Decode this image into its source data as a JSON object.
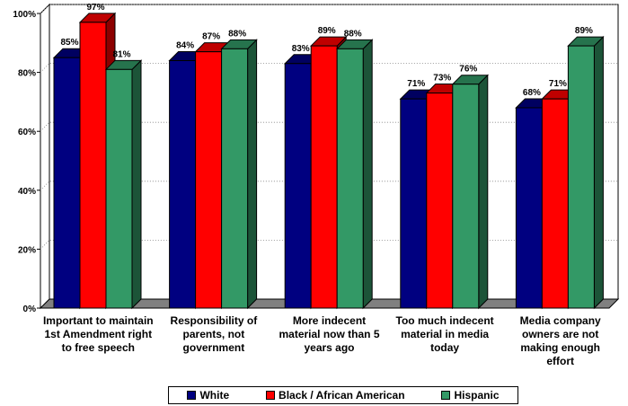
{
  "chart_data": {
    "type": "bar",
    "title": "",
    "categories": [
      "Important to maintain 1st Amendment right to free speech",
      "Responsibility of parents, not government",
      "More indecent material now than 5 years ago",
      "Too much indecent material in media today",
      "Media company owners are not making enough effort"
    ],
    "series": [
      {
        "name": "White",
        "values": [
          85,
          84,
          83,
          71,
          68
        ],
        "labels": [
          "85%",
          "84%",
          "83%",
          "71%",
          "68%"
        ],
        "color": "#000080"
      },
      {
        "name": "Black / African American",
        "values": [
          97,
          87,
          89,
          73,
          71
        ],
        "labels": [
          "97%",
          "87%",
          "89%",
          "73%",
          "71%"
        ],
        "color": "#ff0000"
      },
      {
        "name": "Hispanic",
        "values": [
          81,
          88,
          88,
          76,
          89
        ],
        "labels": [
          "81%",
          "88%",
          "88%",
          "76%",
          "89%"
        ],
        "color": "#339966"
      }
    ],
    "ylim": [
      0,
      100
    ],
    "yticks": [
      {
        "value": 0,
        "label": "0%"
      },
      {
        "value": 20,
        "label": "20%"
      },
      {
        "value": 40,
        "label": "40%"
      },
      {
        "value": 60,
        "label": "60%"
      },
      {
        "value": 80,
        "label": "80%"
      },
      {
        "value": 100,
        "label": "100%"
      }
    ],
    "grid": true,
    "legend_position": "bottom",
    "three_d": true
  },
  "category_lines": [
    [
      "Important to maintain",
      "1st Amendment right",
      "to free speech"
    ],
    [
      "Responsibility of",
      "parents, not",
      "government"
    ],
    [
      "More indecent",
      "material now than 5",
      "years ago"
    ],
    [
      "Too much indecent",
      "material in media",
      "today"
    ],
    [
      "Media company",
      "owners are not",
      "making enough",
      "effort"
    ]
  ],
  "accent_color": "#ff0000"
}
